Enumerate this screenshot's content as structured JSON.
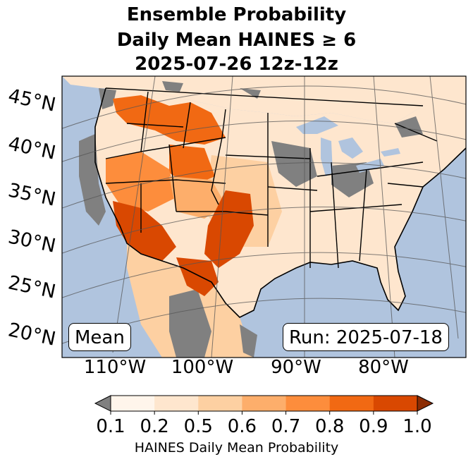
{
  "title": {
    "line1": "Ensemble Probability",
    "line2": "Daily Mean HAINES ≥ 6",
    "line3": "2025-07-26 12z-12z"
  },
  "map": {
    "region": "Contiguous United States",
    "ocean_color": "#b0c4de",
    "land_color": "#ffffff",
    "missing_color": "#808080",
    "lat_labels": [
      "45°N",
      "40°N",
      "35°N",
      "30°N",
      "25°N",
      "20°N"
    ],
    "lon_labels": [
      "110°W",
      "100°W",
      "90°W",
      "80°W"
    ],
    "mean_label": "Mean",
    "run_label": "Run: 2025-07-18"
  },
  "colorbar": {
    "ticks": [
      "0.1",
      "0.2",
      "0.5",
      "0.6",
      "0.7",
      "0.8",
      "0.9",
      "1.0"
    ],
    "colors": [
      "#fff5eb",
      "#fee6ce",
      "#fdd0a2",
      "#fdae6b",
      "#fd8d3c",
      "#f16913",
      "#d94801"
    ],
    "under_color": "#808080",
    "over_color": "#8c2d04",
    "title": "HAINES Daily Mean Probability"
  },
  "probability_regions": [
    {
      "name": "northern-rockies-montana",
      "level": 0.8
    },
    {
      "name": "wyoming-basin",
      "level": 0.8
    },
    {
      "name": "great-basin-nevada-utah",
      "level": 0.7
    },
    {
      "name": "southern-california-arizona",
      "level": 0.9
    },
    {
      "name": "new-mexico-west-texas",
      "level": 0.9
    },
    {
      "name": "colorado-plateau",
      "level": 0.6
    },
    {
      "name": "great-plains",
      "level": 0.5
    },
    {
      "name": "eastern-us",
      "level": 0.2
    },
    {
      "name": "northern-mexico",
      "level": 0.5
    }
  ]
}
